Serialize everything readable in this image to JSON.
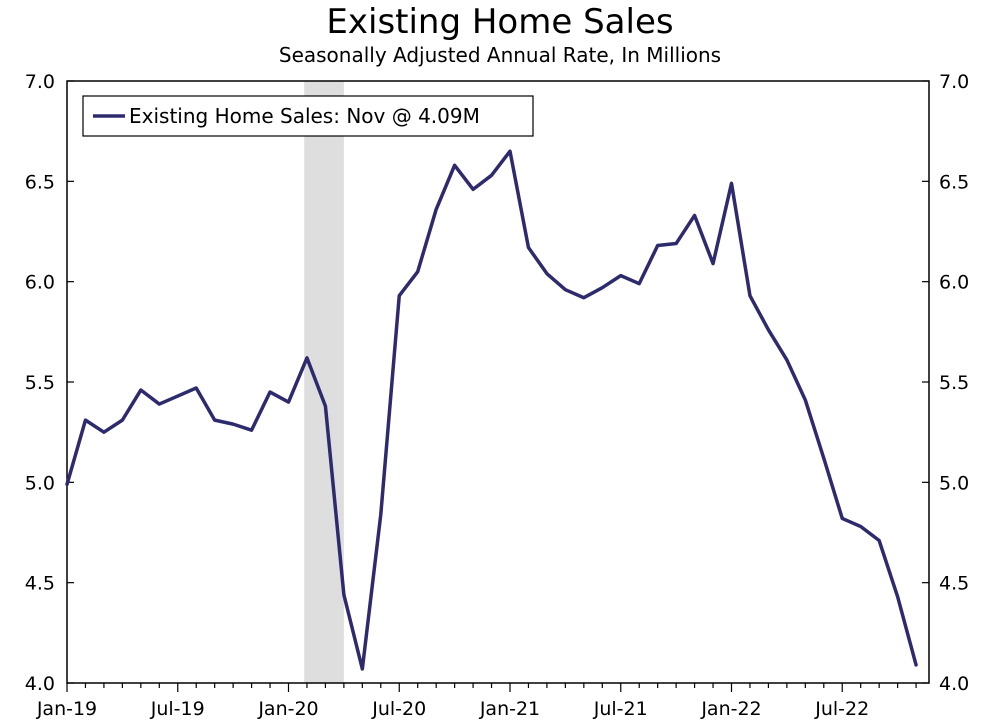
{
  "chart_data": {
    "type": "line",
    "title": "Existing Home Sales",
    "subtitle": "Seasonally Adjusted Annual Rate, In Millions",
    "xlabel": "",
    "ylabel": "",
    "ylim": [
      4.0,
      7.0
    ],
    "y_ticks": [
      "4.0",
      "4.5",
      "5.0",
      "5.5",
      "6.0",
      "6.5",
      "7.0"
    ],
    "x_tick_labels": [
      "Jan-19",
      "Jul-19",
      "Jan-20",
      "Jul-20",
      "Jan-21",
      "Jul-21",
      "Jan-22",
      "Jul-22"
    ],
    "x": [
      "2019-01",
      "2019-02",
      "2019-03",
      "2019-04",
      "2019-05",
      "2019-06",
      "2019-07",
      "2019-08",
      "2019-09",
      "2019-10",
      "2019-11",
      "2019-12",
      "2020-01",
      "2020-02",
      "2020-03",
      "2020-04",
      "2020-05",
      "2020-06",
      "2020-07",
      "2020-08",
      "2020-09",
      "2020-10",
      "2020-11",
      "2020-12",
      "2021-01",
      "2021-02",
      "2021-03",
      "2021-04",
      "2021-05",
      "2021-06",
      "2021-07",
      "2021-08",
      "2021-09",
      "2021-10",
      "2021-11",
      "2021-12",
      "2022-01",
      "2022-02",
      "2022-03",
      "2022-04",
      "2022-05",
      "2022-06",
      "2022-07",
      "2022-08",
      "2022-09",
      "2022-10",
      "2022-11"
    ],
    "series": [
      {
        "name": "Existing Home Sales: Nov @ 4.09M",
        "color": "#2e2a6e",
        "values": [
          4.99,
          5.31,
          5.25,
          5.31,
          5.46,
          5.39,
          5.43,
          5.47,
          5.31,
          5.29,
          5.26,
          5.45,
          5.4,
          5.62,
          5.38,
          4.44,
          4.07,
          4.84,
          5.93,
          6.05,
          6.36,
          6.58,
          6.46,
          6.53,
          6.65,
          6.17,
          6.04,
          5.96,
          5.92,
          5.97,
          6.03,
          5.99,
          6.18,
          6.19,
          6.33,
          6.09,
          6.49,
          5.93,
          5.76,
          5.61,
          5.41,
          5.12,
          4.82,
          4.78,
          4.71,
          4.43,
          4.09
        ]
      }
    ],
    "recession_shading": {
      "start": "2020-02",
      "end": "2020-04",
      "color": "#dedede"
    },
    "grid": false,
    "legend_position": "top-left"
  }
}
